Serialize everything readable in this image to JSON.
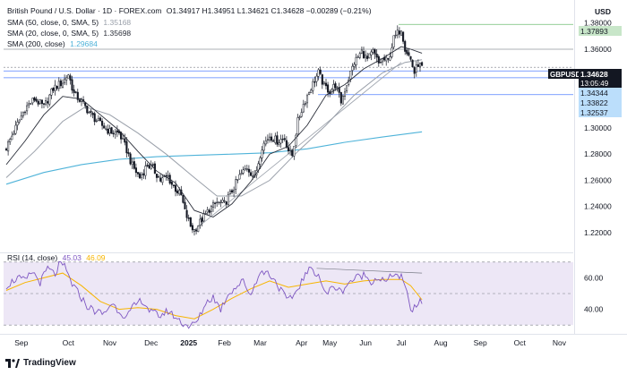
{
  "legend": {
    "title": "British Pound / U.S. Dollar · 1D · FOREX.com",
    "ohlc": "O1.34917  H1.34951  L1.34621  C1.34628  −0.00289 (−0.21%)",
    "sma50_label": "SMA (50, close, 0, SMA, 5)",
    "sma50_value": "1.35168",
    "sma20_label": "SMA (20, close, 0, SMA, 5)",
    "sma20_value": "1.35698",
    "sma200_label": "SMA (200, close)",
    "sma200_value": "1.29684",
    "rsi_label": "RSI (14, close)",
    "rsi_value": "45.03",
    "rsi_ma_value": "46.09"
  },
  "axis": {
    "currency": "USD",
    "price_ticks": [
      "1.38000",
      "1.36000",
      "1.30000",
      "1.28000",
      "1.26000",
      "1.24000",
      "1.22000"
    ],
    "rsi_ticks": [
      "60.00",
      "40.00"
    ],
    "months": [
      "Sep",
      "Oct",
      "Nov",
      "Dec",
      "2025",
      "Feb",
      "Mar",
      "Apr",
      "May",
      "Jun",
      "Jul",
      "Aug",
      "Sep",
      "Oct",
      "Nov"
    ]
  },
  "price_labels": {
    "symbol": "GBPUSD",
    "price": "1.34628",
    "countdown": "13:05:49",
    "level_1": "1.37893",
    "level_2": "1.34344",
    "level_3": "1.33822",
    "level_4": "1.32537"
  },
  "footer": {
    "brand": "TradingView"
  },
  "colors": {
    "candle": "#131722",
    "sma50": "#9aa0aa",
    "sma20": "#2a2e39",
    "sma200": "#4fb3d9",
    "rsi_line": "#7e57c2",
    "rsi_ma": "#f7b500",
    "rsi_band": "#ede7f6",
    "green_level": "#4caf50",
    "blue_level": "#2962ff",
    "label_blue": "#bbdefb",
    "label_dark": "#131722",
    "grid_line": "#787b86"
  },
  "chart_data": {
    "type": "candlestick",
    "timeframe": "1D",
    "ylim": [
      1.205,
      1.388
    ],
    "rsi_ylim": [
      25,
      75
    ],
    "horizontal_levels": [
      1.37893,
      1.36,
      1.34344,
      1.33822,
      1.32537
    ],
    "price_path": [
      [
        0,
        1.285
      ],
      [
        5,
        1.3
      ],
      [
        10,
        1.315
      ],
      [
        15,
        1.322
      ],
      [
        20,
        1.316
      ],
      [
        25,
        1.33
      ],
      [
        30,
        1.335
      ],
      [
        33,
        1.341
      ],
      [
        36,
        1.326
      ],
      [
        40,
        1.32
      ],
      [
        45,
        1.31
      ],
      [
        50,
        1.303
      ],
      [
        55,
        1.297
      ],
      [
        60,
        1.296
      ],
      [
        64,
        1.283
      ],
      [
        67,
        1.271
      ],
      [
        71,
        1.262
      ],
      [
        75,
        1.272
      ],
      [
        78,
        1.269
      ],
      [
        82,
        1.26
      ],
      [
        86,
        1.263
      ],
      [
        88,
        1.257
      ],
      [
        93,
        1.248
      ],
      [
        95,
        1.236
      ],
      [
        98,
        1.225
      ],
      [
        100,
        1.222
      ],
      [
        104,
        1.23
      ],
      [
        108,
        1.238
      ],
      [
        112,
        1.243
      ],
      [
        116,
        1.242
      ],
      [
        120,
        1.252
      ],
      [
        124,
        1.263
      ],
      [
        128,
        1.27
      ],
      [
        132,
        1.262
      ],
      [
        136,
        1.286
      ],
      [
        140,
        1.294
      ],
      [
        144,
        1.29
      ],
      [
        148,
        1.292
      ],
      [
        150,
        1.283
      ],
      [
        152,
        1.279
      ],
      [
        155,
        1.305
      ],
      [
        158,
        1.318
      ],
      [
        162,
        1.331
      ],
      [
        166,
        1.342
      ],
      [
        169,
        1.332
      ],
      [
        172,
        1.328
      ],
      [
        175,
        1.333
      ],
      [
        178,
        1.32
      ],
      [
        182,
        1.338
      ],
      [
        185,
        1.35
      ],
      [
        189,
        1.358
      ],
      [
        192,
        1.352
      ],
      [
        195,
        1.358
      ],
      [
        198,
        1.349
      ],
      [
        200,
        1.352
      ],
      [
        203,
        1.351
      ],
      [
        206,
        1.368
      ],
      [
        210,
        1.376
      ],
      [
        212,
        1.361
      ],
      [
        215,
        1.352
      ],
      [
        217,
        1.342
      ],
      [
        219,
        1.349
      ],
      [
        221,
        1.346
      ]
    ],
    "sma20_path": [
      [
        0,
        1.272
      ],
      [
        10,
        1.29
      ],
      [
        20,
        1.31
      ],
      [
        30,
        1.324
      ],
      [
        40,
        1.322
      ],
      [
        50,
        1.31
      ],
      [
        60,
        1.298
      ],
      [
        70,
        1.282
      ],
      [
        80,
        1.267
      ],
      [
        90,
        1.258
      ],
      [
        100,
        1.237
      ],
      [
        110,
        1.232
      ],
      [
        120,
        1.242
      ],
      [
        130,
        1.259
      ],
      [
        140,
        1.28
      ],
      [
        150,
        1.286
      ],
      [
        160,
        1.302
      ],
      [
        170,
        1.325
      ],
      [
        180,
        1.333
      ],
      [
        190,
        1.345
      ],
      [
        200,
        1.353
      ],
      [
        210,
        1.362
      ],
      [
        215,
        1.36
      ],
      [
        221,
        1.357
      ]
    ],
    "sma50_path": [
      [
        0,
        1.262
      ],
      [
        15,
        1.282
      ],
      [
        30,
        1.305
      ],
      [
        42,
        1.316
      ],
      [
        55,
        1.31
      ],
      [
        70,
        1.296
      ],
      [
        85,
        1.28
      ],
      [
        100,
        1.262
      ],
      [
        112,
        1.248
      ],
      [
        125,
        1.248
      ],
      [
        140,
        1.26
      ],
      [
        155,
        1.282
      ],
      [
        170,
        1.302
      ],
      [
        185,
        1.325
      ],
      [
        200,
        1.342
      ],
      [
        212,
        1.35
      ],
      [
        221,
        1.352
      ]
    ],
    "sma200_path": [
      [
        0,
        1.257
      ],
      [
        20,
        1.266
      ],
      [
        40,
        1.272
      ],
      [
        60,
        1.276
      ],
      [
        80,
        1.278
      ],
      [
        100,
        1.279
      ],
      [
        120,
        1.28
      ],
      [
        140,
        1.281
      ],
      [
        160,
        1.284
      ],
      [
        180,
        1.289
      ],
      [
        200,
        1.293
      ],
      [
        221,
        1.297
      ]
    ],
    "support_trendline": [
      [
        100,
        1.222
      ],
      [
        210,
        1.35
      ]
    ],
    "rsi_path": [
      [
        0,
        55
      ],
      [
        6,
        60
      ],
      [
        10,
        58
      ],
      [
        14,
        64
      ],
      [
        18,
        57
      ],
      [
        22,
        66
      ],
      [
        26,
        62
      ],
      [
        28,
        68
      ],
      [
        31,
        67
      ],
      [
        35,
        56
      ],
      [
        39,
        49
      ],
      [
        43,
        42
      ],
      [
        47,
        39
      ],
      [
        52,
        37
      ],
      [
        56,
        44
      ],
      [
        60,
        39
      ],
      [
        64,
        35
      ],
      [
        68,
        42
      ],
      [
        72,
        46
      ],
      [
        77,
        38
      ],
      [
        82,
        36
      ],
      [
        86,
        39
      ],
      [
        90,
        35
      ],
      [
        94,
        31
      ],
      [
        98,
        29
      ],
      [
        102,
        33
      ],
      [
        106,
        44
      ],
      [
        110,
        48
      ],
      [
        114,
        40
      ],
      [
        118,
        50
      ],
      [
        122,
        54
      ],
      [
        126,
        58
      ],
      [
        130,
        49
      ],
      [
        134,
        62
      ],
      [
        138,
        64
      ],
      [
        142,
        60
      ],
      [
        146,
        52
      ],
      [
        150,
        45
      ],
      [
        154,
        51
      ],
      [
        158,
        60
      ],
      [
        162,
        66
      ],
      [
        166,
        62
      ],
      [
        170,
        49
      ],
      [
        174,
        55
      ],
      [
        178,
        51
      ],
      [
        182,
        57
      ],
      [
        186,
        60
      ],
      [
        190,
        62
      ],
      [
        194,
        58
      ],
      [
        198,
        60
      ],
      [
        202,
        57
      ],
      [
        206,
        63
      ],
      [
        210,
        60
      ],
      [
        212,
        54
      ],
      [
        214,
        45
      ],
      [
        216,
        38
      ],
      [
        218,
        43
      ],
      [
        221,
        45
      ]
    ],
    "rsi_ma_path": [
      [
        0,
        52
      ],
      [
        10,
        57
      ],
      [
        20,
        60
      ],
      [
        30,
        63
      ],
      [
        40,
        55
      ],
      [
        50,
        45
      ],
      [
        60,
        40
      ],
      [
        70,
        41
      ],
      [
        80,
        40
      ],
      [
        90,
        36
      ],
      [
        100,
        34
      ],
      [
        110,
        40
      ],
      [
        120,
        47
      ],
      [
        130,
        53
      ],
      [
        140,
        58
      ],
      [
        150,
        54
      ],
      [
        160,
        56
      ],
      [
        170,
        58
      ],
      [
        180,
        56
      ],
      [
        190,
        58
      ],
      [
        200,
        59
      ],
      [
        210,
        59
      ],
      [
        215,
        55
      ],
      [
        221,
        46
      ]
    ],
    "rsi_divergence_line": [
      [
        165,
        66
      ],
      [
        221,
        63
      ]
    ]
  }
}
